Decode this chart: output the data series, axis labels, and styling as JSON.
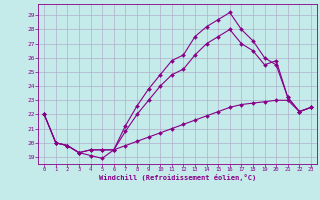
{
  "xlabel": "Windchill (Refroidissement éolien,°C)",
  "xlim": [
    -0.5,
    23.5
  ],
  "ylim": [
    18.5,
    29.8
  ],
  "xticks": [
    0,
    1,
    2,
    3,
    4,
    5,
    6,
    7,
    8,
    9,
    10,
    11,
    12,
    13,
    14,
    15,
    16,
    17,
    18,
    19,
    20,
    21,
    22,
    23
  ],
  "yticks": [
    19,
    20,
    21,
    22,
    23,
    24,
    25,
    26,
    27,
    28,
    29
  ],
  "bg_color": "#c5eaea",
  "grid_color": "#b0b0cc",
  "line_color": "#880088",
  "line1_x": [
    0,
    1,
    2,
    3,
    4,
    5,
    6,
    7,
    8,
    9,
    10,
    11,
    12,
    13,
    14,
    15,
    16,
    17,
    18,
    19,
    20,
    21,
    22,
    23
  ],
  "line1_y": [
    22.0,
    20.0,
    19.8,
    19.3,
    19.1,
    18.9,
    19.5,
    21.2,
    22.6,
    23.8,
    24.8,
    25.8,
    26.2,
    27.5,
    28.2,
    28.7,
    29.2,
    28.0,
    27.2,
    26.0,
    25.5,
    23.2,
    22.2,
    22.5
  ],
  "line2_x": [
    0,
    1,
    2,
    3,
    4,
    5,
    6,
    7,
    8,
    9,
    10,
    11,
    12,
    13,
    14,
    15,
    16,
    17,
    18,
    19,
    20,
    21,
    22,
    23
  ],
  "line2_y": [
    22.0,
    20.0,
    19.8,
    19.3,
    19.5,
    19.5,
    19.5,
    20.8,
    22.0,
    23.0,
    24.0,
    24.8,
    25.2,
    26.2,
    27.0,
    27.5,
    28.0,
    27.0,
    26.5,
    25.5,
    25.8,
    23.2,
    22.2,
    22.5
  ],
  "line3_x": [
    0,
    1,
    2,
    3,
    4,
    5,
    6,
    7,
    8,
    9,
    10,
    11,
    12,
    13,
    14,
    15,
    16,
    17,
    18,
    19,
    20,
    21,
    22,
    23
  ],
  "line3_y": [
    22.0,
    20.0,
    19.8,
    19.3,
    19.5,
    19.5,
    19.5,
    19.8,
    20.1,
    20.4,
    20.7,
    21.0,
    21.3,
    21.6,
    21.9,
    22.2,
    22.5,
    22.7,
    22.8,
    22.9,
    23.0,
    23.0,
    22.2,
    22.5
  ]
}
